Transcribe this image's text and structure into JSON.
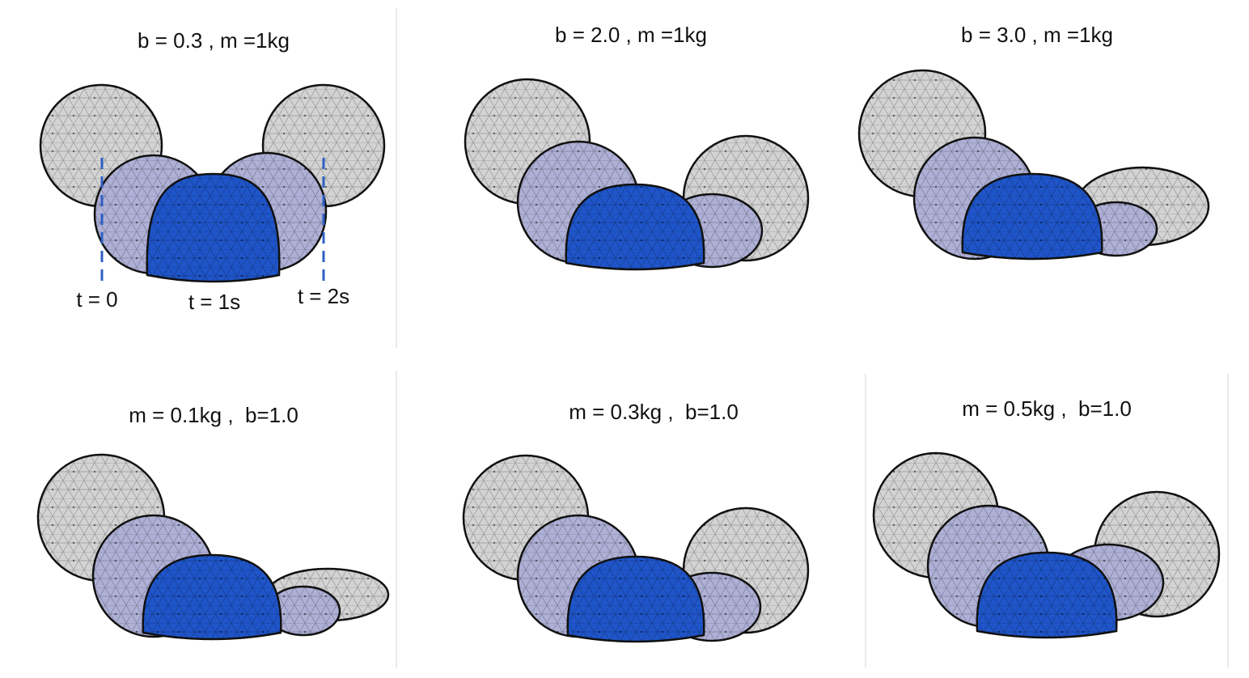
{
  "panels": [
    {
      "title": "b = 0.3 , m =1kg",
      "labels": [
        "t = 0",
        "t = 1s",
        "t = 2s"
      ]
    },
    {
      "title": "b = 2.0 , m =1kg"
    },
    {
      "title": "b = 3.0 , m =1kg"
    },
    {
      "title": "m = 0.1kg ,  b=1.0"
    },
    {
      "title": "m = 0.3kg ,  b=1.0"
    },
    {
      "title": "m = 0.5kg ,  b=1.0"
    }
  ]
}
